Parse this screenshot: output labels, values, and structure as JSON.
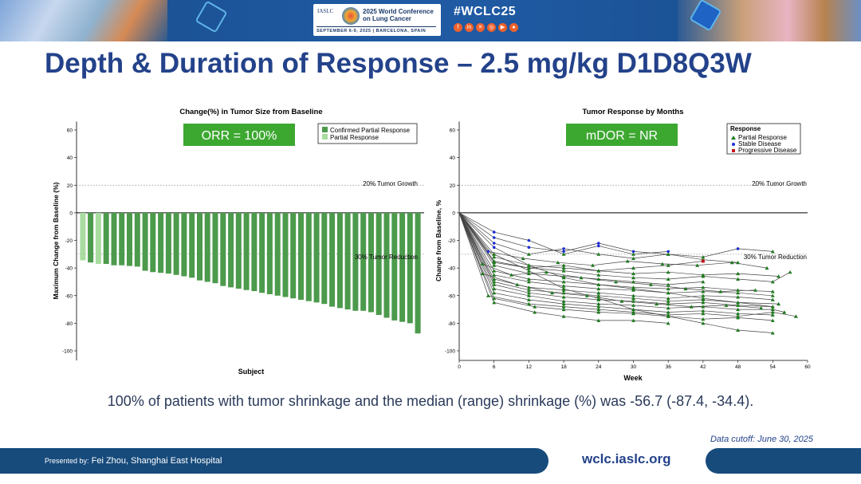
{
  "header": {
    "org": "IASLC",
    "conference": "2025 World Conference on Lung Cancer",
    "dates": "SEPTEMBER 6-9, 2025 | BARCELONA, SPAIN",
    "hashtag": "#WCLC25",
    "social_icons": [
      "facebook-icon",
      "linkedin-icon",
      "x-icon",
      "instagram-icon",
      "youtube-icon",
      "wechat-icon"
    ],
    "accent": "#f0612d"
  },
  "slide": {
    "title": "Depth & Duration of Response – 2.5 mg/kg D1D8Q3W",
    "caption": "100% of patients with tumor shrinkage and the median (range) shrinkage (%) was -56.7 (-87.4, -34.4).",
    "cutoff": "Data cutoff: June 30, 2025"
  },
  "footer": {
    "presented_label": "Presented by:",
    "presenter": "Fei Zhou, Shanghai East Hospital",
    "url": "wclc.iaslc.org"
  },
  "chart_data": [
    {
      "type": "bar",
      "title": "Change(%) in Tumor Size from Baseline",
      "xlabel": "Subject",
      "ylabel": "Maximum Change from Baseline (%)",
      "ylim": [
        -100,
        65
      ],
      "yticks": [
        "60",
        "40",
        "20",
        "0",
        "-20",
        "-40",
        "-60",
        "-80",
        "-100"
      ],
      "badge": "ORR = 100%",
      "badge_color": "#3ca830",
      "legend": {
        "position": "top-right",
        "entries": [
          "Confirmed Partial Response",
          "Partial Response"
        ]
      },
      "colors": {
        "Confirmed Partial Response": "#4c9a4c",
        "Partial Response": "#a8dca0"
      },
      "reference_lines": [
        {
          "y": 20,
          "label": "20% Tumor Growth"
        },
        {
          "y": -30,
          "label": "30% Tumor Reduction"
        }
      ],
      "values": [
        -34.4,
        -36,
        -37,
        -37,
        -38,
        -38,
        -38.5,
        -39,
        -42,
        -43,
        -43.5,
        -44,
        -45,
        -46,
        -47,
        -49,
        -50,
        -51,
        -53,
        -54,
        -55,
        -56,
        -56.7,
        -58,
        -59,
        -60,
        -61,
        -62,
        -63,
        -64,
        -65,
        -66,
        -68,
        -69,
        -70,
        -71,
        -71,
        -72,
        -74,
        -76,
        -78,
        -79,
        -80,
        -87.4
      ],
      "status": [
        "PR",
        "CPR",
        "PR",
        "CPR",
        "CPR",
        "CPR",
        "CPR",
        "CPR",
        "CPR",
        "CPR",
        "CPR",
        "CPR",
        "CPR",
        "CPR",
        "CPR",
        "CPR",
        "CPR",
        "CPR",
        "CPR",
        "CPR",
        "CPR",
        "CPR",
        "CPR",
        "CPR",
        "CPR",
        "CPR",
        "CPR",
        "CPR",
        "CPR",
        "CPR",
        "CPR",
        "CPR",
        "CPR",
        "CPR",
        "CPR",
        "CPR",
        "CPR",
        "CPR",
        "CPR",
        "CPR",
        "CPR",
        "CPR",
        "CPR",
        "CPR"
      ]
    },
    {
      "type": "line",
      "title": "Tumor Response by Months",
      "xlabel": "Week",
      "ylabel": "Change from Baseline, %",
      "xlim": [
        0,
        60
      ],
      "ylim": [
        -100,
        65
      ],
      "xticks": [
        "0",
        "6",
        "12",
        "18",
        "24",
        "30",
        "36",
        "42",
        "48",
        "54",
        "60"
      ],
      "yticks": [
        "60",
        "40",
        "20",
        "0",
        "-20",
        "-40",
        "-60",
        "-80",
        "-100"
      ],
      "badge": "mDOR = NR",
      "badge_color": "#3ca830",
      "legend": {
        "position": "top-right",
        "title": "Response",
        "entries": [
          "Partial Response",
          "Stable Disease",
          "Progressive Disease"
        ]
      },
      "colors": {
        "Partial Response": "#1f7a1f",
        "Stable Disease": "#1f2ed6",
        "Progressive Disease": "#c4161c"
      },
      "reference_lines": [
        {
          "y": 20,
          "label": "20% Tumor Growth"
        },
        {
          "y": -30,
          "label": "30% Tumor Reduction"
        }
      ],
      "series": [
        {
          "x": [
            0,
            6,
            12,
            18,
            24,
            30,
            36,
            42,
            48,
            54
          ],
          "y": [
            0,
            -18,
            -25,
            -28,
            -22,
            -28,
            -30,
            -32,
            -26,
            -28
          ],
          "r": [
            "SD",
            "SD",
            "SD",
            "SD",
            "SD",
            "SD",
            "PR",
            "PR",
            "SD",
            "PR"
          ]
        },
        {
          "x": [
            0,
            6,
            12,
            18,
            24,
            30,
            36
          ],
          "y": [
            0,
            -14,
            -20,
            -30,
            -24,
            -30,
            -28
          ],
          "r": [
            "SD",
            "SD",
            "SD",
            "PR",
            "SD",
            "PR",
            "SD"
          ]
        },
        {
          "x": [
            0,
            5,
            11,
            17,
            23,
            29,
            35,
            41,
            47,
            53
          ],
          "y": [
            0,
            -28,
            -33,
            -36,
            -38,
            -35,
            -37,
            -38,
            -36,
            -40
          ],
          "r": [
            "SD",
            "SD",
            "PR",
            "PR",
            "PR",
            "PR",
            "PR",
            "PR",
            "PR",
            "PR"
          ]
        },
        {
          "x": [
            0,
            6,
            12,
            18,
            24,
            30,
            36,
            42,
            48,
            55
          ],
          "y": [
            0,
            -32,
            -38,
            -40,
            -42,
            -44,
            -43,
            -45,
            -44,
            -46
          ],
          "r": [
            "SD",
            "PR",
            "PR",
            "PR",
            "PR",
            "PR",
            "PR",
            "PR",
            "PR",
            "PR"
          ]
        },
        {
          "x": [
            0,
            6,
            12,
            18,
            24,
            30,
            36,
            42,
            48,
            54,
            57
          ],
          "y": [
            0,
            -35,
            -40,
            -42,
            -45,
            -47,
            -48,
            -46,
            -48,
            -50,
            -43
          ],
          "r": [
            "SD",
            "PR",
            "PR",
            "PR",
            "PR",
            "PR",
            "PR",
            "PR",
            "PR",
            "PR",
            "PR"
          ]
        },
        {
          "x": [
            0,
            6,
            12,
            18,
            24,
            30,
            36,
            42
          ],
          "y": [
            0,
            -38,
            -44,
            -46,
            -48,
            -50,
            -52,
            -50
          ],
          "r": [
            "SD",
            "PR",
            "PR",
            "PR",
            "PR",
            "PR",
            "PR",
            "PR"
          ]
        },
        {
          "x": [
            0,
            6,
            12,
            18,
            24,
            30,
            36,
            42,
            48,
            54
          ],
          "y": [
            0,
            -42,
            -48,
            -50,
            -52,
            -54,
            -55,
            -54,
            -56,
            -57
          ],
          "r": [
            "SD",
            "PR",
            "PR",
            "PR",
            "PR",
            "PR",
            "PR",
            "PR",
            "PR",
            "PR"
          ]
        },
        {
          "x": [
            0,
            6,
            12,
            18,
            24,
            30,
            36,
            42,
            48,
            54
          ],
          "y": [
            0,
            -45,
            -50,
            -53,
            -55,
            -56,
            -58,
            -57,
            -58,
            -60
          ],
          "r": [
            "SD",
            "PR",
            "PR",
            "PR",
            "PR",
            "PR",
            "PR",
            "PR",
            "PR",
            "PR"
          ]
        },
        {
          "x": [
            0,
            6,
            12,
            18,
            24,
            30,
            36,
            42,
            48,
            54
          ],
          "y": [
            0,
            -48,
            -54,
            -56,
            -58,
            -60,
            -62,
            -60,
            -61,
            -63
          ],
          "r": [
            "SD",
            "PR",
            "PR",
            "PR",
            "PR",
            "PR",
            "PR",
            "PR",
            "PR",
            "PR"
          ]
        },
        {
          "x": [
            0,
            6,
            12,
            18,
            24,
            30,
            36,
            42,
            48,
            55
          ],
          "y": [
            0,
            -50,
            -56,
            -58,
            -60,
            -62,
            -64,
            -63,
            -65,
            -66
          ],
          "r": [
            "SD",
            "PR",
            "PR",
            "PR",
            "PR",
            "PR",
            "PR",
            "PR",
            "PR",
            "PR"
          ]
        },
        {
          "x": [
            0,
            6,
            12,
            18,
            24,
            30,
            36,
            42,
            48,
            54
          ],
          "y": [
            0,
            -52,
            -58,
            -61,
            -63,
            -64,
            -66,
            -65,
            -67,
            -68
          ],
          "r": [
            "SD",
            "PR",
            "PR",
            "PR",
            "PR",
            "PR",
            "PR",
            "PR",
            "PR",
            "PR"
          ]
        },
        {
          "x": [
            0,
            6,
            12,
            18,
            24,
            30,
            36,
            42,
            48,
            54,
            56
          ],
          "y": [
            0,
            -55,
            -60,
            -64,
            -66,
            -67,
            -69,
            -68,
            -70,
            -70,
            -72
          ],
          "r": [
            "SD",
            "PR",
            "PR",
            "PR",
            "PR",
            "PR",
            "PR",
            "PR",
            "PR",
            "PR",
            "PR"
          ]
        },
        {
          "x": [
            0,
            6,
            12,
            18,
            24,
            30,
            36,
            42,
            48,
            54
          ],
          "y": [
            0,
            -58,
            -63,
            -66,
            -68,
            -70,
            -72,
            -71,
            -73,
            -74
          ],
          "r": [
            "SD",
            "PR",
            "PR",
            "PR",
            "PR",
            "PR",
            "PR",
            "PR",
            "PR",
            "PR"
          ]
        },
        {
          "x": [
            0,
            5,
            12,
            18,
            24,
            30,
            36,
            42,
            48,
            54,
            58
          ],
          "y": [
            0,
            -60,
            -66,
            -68,
            -70,
            -72,
            -74,
            -73,
            -75,
            -72,
            -75
          ],
          "r": [
            "SD",
            "PR",
            "PR",
            "PR",
            "PR",
            "PR",
            "PR",
            "PR",
            "PR",
            "PR",
            "PR"
          ]
        },
        {
          "x": [
            0,
            6,
            13,
            18,
            24,
            30,
            36,
            42,
            48,
            54
          ],
          "y": [
            0,
            -62,
            -68,
            -70,
            -72,
            -73,
            -75,
            -77,
            -76,
            -78
          ],
          "r": [
            "SD",
            "PR",
            "PR",
            "PR",
            "PR",
            "PR",
            "PR",
            "PR",
            "PR",
            "PR"
          ]
        },
        {
          "x": [
            0,
            6,
            13,
            18,
            24,
            30,
            36
          ],
          "y": [
            0,
            -65,
            -72,
            -75,
            -78,
            -78,
            -80
          ],
          "r": [
            "SD",
            "PR",
            "PR",
            "PR",
            "PR",
            "PR",
            "PR"
          ]
        },
        {
          "x": [
            0,
            6,
            12,
            18,
            24,
            30,
            36,
            42,
            48,
            54
          ],
          "y": [
            0,
            -30,
            -42,
            -55,
            -62,
            -70,
            -75,
            -80,
            -85,
            -87
          ],
          "r": [
            "SD",
            "PR",
            "PR",
            "PR",
            "PR",
            "PR",
            "PR",
            "PR",
            "PR",
            "PR"
          ]
        },
        {
          "x": [
            0,
            6,
            12,
            18,
            24,
            30,
            36,
            42,
            48
          ],
          "y": [
            0,
            -22,
            -30,
            -26,
            -30,
            -33,
            -30,
            -34,
            -36
          ],
          "r": [
            "SD",
            "SD",
            "PR",
            "SD",
            "PR",
            "PR",
            "PR",
            "PR",
            "PR"
          ]
        },
        {
          "x": [
            0,
            4,
            9,
            15,
            21,
            27,
            33,
            39,
            45,
            51
          ],
          "y": [
            0,
            -37,
            -45,
            -43,
            -47,
            -50,
            -52,
            -55,
            -57,
            -56
          ],
          "r": [
            "SD",
            "PR",
            "PR",
            "PR",
            "PR",
            "PR",
            "PR",
            "PR",
            "PR",
            "PR"
          ]
        },
        {
          "x": [
            0,
            4,
            10,
            16,
            22,
            28,
            34,
            40,
            46,
            52
          ],
          "y": [
            0,
            -44,
            -52,
            -58,
            -60,
            -64,
            -66,
            -68,
            -67,
            -69
          ],
          "r": [
            "SD",
            "PR",
            "PR",
            "PR",
            "PR",
            "PR",
            "PR",
            "PR",
            "PR",
            "PR"
          ]
        },
        {
          "x": [
            0,
            6,
            12,
            18,
            24,
            30,
            36,
            42
          ],
          "y": [
            0,
            -36,
            -40,
            -38,
            -42,
            -40,
            -38,
            -35
          ],
          "r": [
            "SD",
            "PR",
            "PR",
            "PR",
            "PR",
            "PR",
            "PR",
            "PD"
          ]
        },
        {
          "x": [
            0,
            6,
            12,
            18,
            24,
            30,
            36,
            42,
            48,
            54
          ],
          "y": [
            0,
            -25,
            -38,
            -47,
            -52,
            -55,
            -58,
            -62,
            -65,
            -68
          ],
          "r": [
            "SD",
            "SD",
            "PR",
            "PR",
            "PR",
            "PR",
            "PR",
            "PR",
            "PR",
            "PR"
          ]
        }
      ]
    }
  ]
}
